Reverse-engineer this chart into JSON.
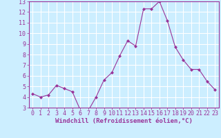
{
  "x": [
    0,
    1,
    2,
    3,
    4,
    5,
    6,
    7,
    8,
    9,
    10,
    11,
    12,
    13,
    14,
    15,
    16,
    17,
    18,
    19,
    20,
    21,
    22,
    23
  ],
  "y": [
    4.3,
    4.0,
    4.2,
    5.1,
    4.8,
    4.5,
    2.8,
    2.7,
    4.0,
    5.6,
    6.3,
    7.9,
    9.3,
    8.8,
    12.3,
    12.3,
    13.0,
    11.2,
    8.7,
    7.5,
    6.6,
    6.6,
    5.5,
    4.7
  ],
  "line_color": "#993399",
  "marker": "D",
  "marker_size": 2,
  "bg_color": "#cceeff",
  "grid_color": "#ffffff",
  "xlabel": "Windchill (Refroidissement éolien,°C)",
  "ylim": [
    3,
    13
  ],
  "xlim": [
    -0.5,
    23.5
  ],
  "yticks": [
    3,
    4,
    5,
    6,
    7,
    8,
    9,
    10,
    11,
    12,
    13
  ],
  "xticks": [
    0,
    1,
    2,
    3,
    4,
    5,
    6,
    7,
    8,
    9,
    10,
    11,
    12,
    13,
    14,
    15,
    16,
    17,
    18,
    19,
    20,
    21,
    22,
    23
  ],
  "tick_label_color": "#993399",
  "axis_color": "#993399",
  "font_family": "monospace",
  "xlabel_fontsize": 6.5,
  "tick_fontsize": 6.0,
  "linewidth": 0.8
}
